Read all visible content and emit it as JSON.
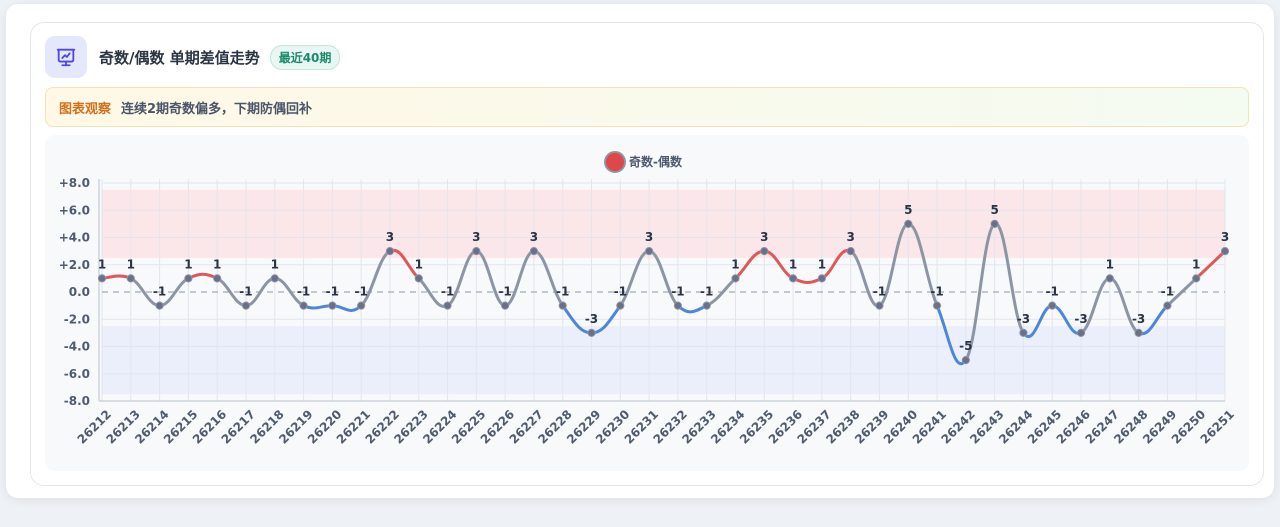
{
  "header": {
    "title": "奇数/偶数 单期差值走势",
    "badge": "最近40期",
    "icon": "presentation-chart-icon"
  },
  "notice": {
    "tag": "图表观察",
    "text": "连续2期奇数偏多，下期防偶回补"
  },
  "colors": {
    "positive_line": "#e15759",
    "negative_line": "#4e86d9",
    "neutral_line": "#8b95a3",
    "upper_band": "#fbe3e6",
    "lower_band": "#e7edfa",
    "legend_dot": "#e04848"
  },
  "chart_data": {
    "type": "line",
    "title": "",
    "xlabel": "",
    "ylabel": "",
    "legend": {
      "label": "奇数-偶数",
      "position": "top-center"
    },
    "categories": [
      "26212",
      "26213",
      "26214",
      "26215",
      "26216",
      "26217",
      "26218",
      "26219",
      "26220",
      "26221",
      "26222",
      "26223",
      "26224",
      "26225",
      "26226",
      "26227",
      "26228",
      "26229",
      "26230",
      "26231",
      "26232",
      "26233",
      "26234",
      "26235",
      "26236",
      "26237",
      "26238",
      "26239",
      "26240",
      "26241",
      "26242",
      "26243",
      "26244",
      "26245",
      "26246",
      "26247",
      "26248",
      "26249",
      "26250",
      "26251"
    ],
    "series": [
      {
        "name": "奇数-偶数",
        "values": [
          1,
          1,
          -1,
          1,
          1,
          -1,
          1,
          -1,
          -1,
          -1,
          3,
          1,
          -1,
          3,
          -1,
          3,
          -1,
          -3,
          -1,
          3,
          -1,
          -1,
          1,
          3,
          1,
          1,
          3,
          -1,
          5,
          -1,
          -5,
          5,
          -3,
          -1,
          -3,
          1,
          -3,
          -1,
          1,
          3
        ]
      }
    ],
    "ylim": [
      -8,
      8
    ],
    "yticks": [
      "+8.0",
      "+6.0",
      "+4.0",
      "+2.0",
      "0.0",
      "-2.0",
      "-4.0",
      "-6.0",
      "-8.0"
    ],
    "bands": [
      {
        "from": 2.5,
        "to": 7.5,
        "color": "upper"
      },
      {
        "from": -7.5,
        "to": -2.5,
        "color": "lower"
      }
    ],
    "zero_line": "dashed",
    "grid": true
  }
}
